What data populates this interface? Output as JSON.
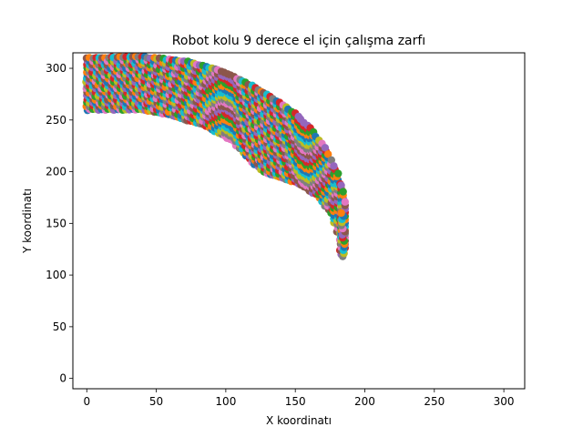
{
  "chart_data": {
    "type": "scatter",
    "title": "Robot kolu 9 derece el için çalışma zarfı",
    "xlabel": "X koordinatı",
    "ylabel": "Y koordinatı",
    "xlim": [
      -10,
      315
    ],
    "ylim": [
      -10,
      315
    ],
    "xticks": [
      0,
      50,
      100,
      150,
      200,
      250,
      300
    ],
    "yticks": [
      0,
      50,
      100,
      150,
      200,
      250,
      300
    ],
    "grid": false,
    "legend": false,
    "marker": "circle",
    "envelope": {
      "inner_boundary": [
        [
          0,
          260
        ],
        [
          40,
          260
        ],
        [
          60,
          255
        ],
        [
          85,
          245
        ],
        [
          105,
          230
        ],
        [
          118,
          210
        ],
        [
          130,
          198
        ],
        [
          150,
          190
        ],
        [
          165,
          178
        ],
        [
          176,
          160
        ],
        [
          181,
          140
        ],
        [
          183,
          120
        ]
      ],
      "outer_boundary": [
        [
          0,
          310
        ],
        [
          40,
          311
        ],
        [
          70,
          307
        ],
        [
          95,
          298
        ],
        [
          115,
          286
        ],
        [
          135,
          270
        ],
        [
          150,
          256
        ],
        [
          162,
          240
        ],
        [
          172,
          222
        ],
        [
          180,
          200
        ],
        [
          185,
          178
        ],
        [
          187,
          160
        ],
        [
          187,
          140
        ],
        [
          185,
          125
        ]
      ],
      "point_count_approx": 1500
    },
    "colors": [
      "#1f77b4",
      "#ff7f0e",
      "#2ca02c",
      "#d62728",
      "#9467bd",
      "#8c564b",
      "#e377c2",
      "#7f7f7f",
      "#bcbd22",
      "#17becf"
    ]
  }
}
